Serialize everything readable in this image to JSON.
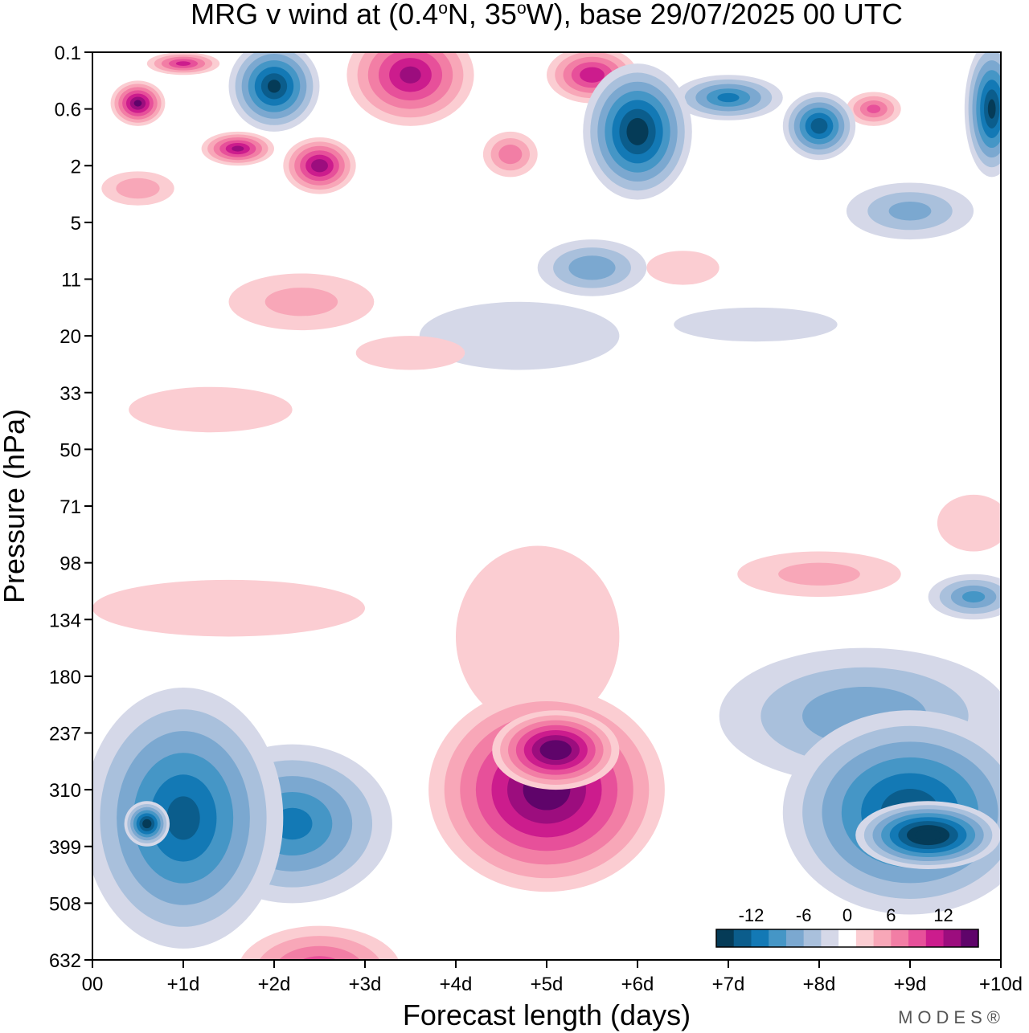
{
  "chart_data": {
    "type": "heatmap",
    "title": "MRG v wind at (0.4°N, 35°W),  base 29/07/2025  00 UTC",
    "title_parts": {
      "pre": "MRG v wind at (0.4",
      "deg1": "o",
      "mid": "N, 35",
      "deg2": "o",
      "post": "W),  base 29/07/2025  00 UTC"
    },
    "xlabel": "Forecast length (days)",
    "ylabel": "Pressure (hPa)",
    "x_ticks": [
      "00",
      "+1d",
      "+2d",
      "+3d",
      "+4d",
      "+5d",
      "+6d",
      "+7d",
      "+8d",
      "+9d",
      "+10d"
    ],
    "y_ticks": [
      "0.1",
      "0.6",
      "2",
      "5",
      "11",
      "20",
      "33",
      "50",
      "71",
      "98",
      "134",
      "180",
      "237",
      "310",
      "399",
      "508",
      "632"
    ],
    "xlim": [
      0,
      10
    ],
    "ylim": [
      "0.1",
      "632"
    ],
    "colorbar": {
      "tick_labels": [
        "-12",
        "-6",
        "0",
        "6",
        "12"
      ],
      "tick_values": [
        -12,
        -6,
        0,
        6,
        12
      ],
      "levels": [
        -16,
        -14,
        -12,
        -10,
        -8,
        -6,
        -4,
        -2,
        2,
        4,
        6,
        8,
        10,
        12,
        14,
        16
      ],
      "colors": [
        "#053b57",
        "#0b5d8c",
        "#1379b5",
        "#4596c6",
        "#7ba8d0",
        "#a9c0dc",
        "#d5d8e8",
        "#ffffff",
        "#fbcdd2",
        "#f8a7b8",
        "#f27ea5",
        "#e7509a",
        "#cc1c8d",
        "#9c0d7e",
        "#5f046a"
      ]
    },
    "zones": [
      {
        "x": 1.0,
        "y": 13.5,
        "rx": 1.1,
        "ry": 2.3,
        "v": -12
      },
      {
        "x": 2.2,
        "y": 13.6,
        "rx": 1.1,
        "ry": 1.4,
        "v": -10
      },
      {
        "x": 0.6,
        "y": 13.6,
        "rx": 0.25,
        "ry": 0.4,
        "v": -15
      },
      {
        "x": 5.0,
        "y": 13.0,
        "rx": 1.3,
        "ry": 1.8,
        "v": 15
      },
      {
        "x": 5.1,
        "y": 12.3,
        "rx": 0.7,
        "ry": 0.7,
        "v": 16
      },
      {
        "x": 9.0,
        "y": 13.4,
        "rx": 1.4,
        "ry": 1.8,
        "v": -13
      },
      {
        "x": 9.2,
        "y": 13.8,
        "rx": 0.8,
        "ry": 0.6,
        "v": -17
      },
      {
        "x": 2.5,
        "y": 16.2,
        "rx": 0.9,
        "ry": 0.8,
        "v": 9
      },
      {
        "x": 8.5,
        "y": 11.7,
        "rx": 1.6,
        "ry": 1.2,
        "v": -7
      },
      {
        "x": 9.7,
        "y": 9.6,
        "rx": 0.5,
        "ry": 0.4,
        "v": -8
      },
      {
        "x": 1.5,
        "y": 9.8,
        "rx": 1.5,
        "ry": 0.5,
        "v": 3
      },
      {
        "x": 8.0,
        "y": 9.2,
        "rx": 0.9,
        "ry": 0.4,
        "v": 4
      },
      {
        "x": 4.9,
        "y": 10.3,
        "rx": 0.9,
        "ry": 1.6,
        "v": 3
      },
      {
        "x": 0.5,
        "y": 0.9,
        "rx": 0.3,
        "ry": 0.4,
        "v": 14
      },
      {
        "x": 1.0,
        "y": 0.2,
        "rx": 0.4,
        "ry": 0.2,
        "v": 10
      },
      {
        "x": 2.0,
        "y": 0.6,
        "rx": 0.5,
        "ry": 0.8,
        "v": -14
      },
      {
        "x": 3.5,
        "y": 0.4,
        "rx": 0.7,
        "ry": 0.9,
        "v": 12
      },
      {
        "x": 1.6,
        "y": 1.7,
        "rx": 0.4,
        "ry": 0.3,
        "v": 12
      },
      {
        "x": 2.5,
        "y": 2.0,
        "rx": 0.4,
        "ry": 0.5,
        "v": 13
      },
      {
        "x": 5.5,
        "y": 0.4,
        "rx": 0.5,
        "ry": 0.5,
        "v": 11
      },
      {
        "x": 6.0,
        "y": 1.4,
        "rx": 0.6,
        "ry": 1.2,
        "v": -15
      },
      {
        "x": 7.0,
        "y": 0.8,
        "rx": 0.6,
        "ry": 0.4,
        "v": -10
      },
      {
        "x": 8.0,
        "y": 1.3,
        "rx": 0.4,
        "ry": 0.6,
        "v": -13
      },
      {
        "x": 9.9,
        "y": 1.0,
        "rx": 0.3,
        "ry": 1.2,
        "v": -14
      },
      {
        "x": 8.6,
        "y": 1.0,
        "rx": 0.3,
        "ry": 0.3,
        "v": 8
      },
      {
        "x": 4.6,
        "y": 1.8,
        "rx": 0.3,
        "ry": 0.4,
        "v": 7
      },
      {
        "x": 5.5,
        "y": 3.8,
        "rx": 0.6,
        "ry": 0.5,
        "v": -7
      },
      {
        "x": 9.0,
        "y": 2.8,
        "rx": 0.7,
        "ry": 0.5,
        "v": -6
      },
      {
        "x": 2.3,
        "y": 4.4,
        "rx": 0.8,
        "ry": 0.5,
        "v": 4
      },
      {
        "x": 1.3,
        "y": 6.3,
        "rx": 0.9,
        "ry": 0.4,
        "v": 3
      },
      {
        "x": 4.7,
        "y": 5.0,
        "rx": 1.1,
        "ry": 0.6,
        "v": -3
      },
      {
        "x": 7.3,
        "y": 4.8,
        "rx": 0.9,
        "ry": 0.3,
        "v": -3
      },
      {
        "x": 3.5,
        "y": 5.3,
        "rx": 0.6,
        "ry": 0.3,
        "v": 3
      },
      {
        "x": 6.5,
        "y": 3.8,
        "rx": 0.4,
        "ry": 0.3,
        "v": 3
      },
      {
        "x": 0.5,
        "y": 2.4,
        "rx": 0.4,
        "ry": 0.3,
        "v": 5
      },
      {
        "x": 9.7,
        "y": 8.3,
        "rx": 0.4,
        "ry": 0.5,
        "v": 3
      }
    ]
  },
  "brand": "MODES®"
}
